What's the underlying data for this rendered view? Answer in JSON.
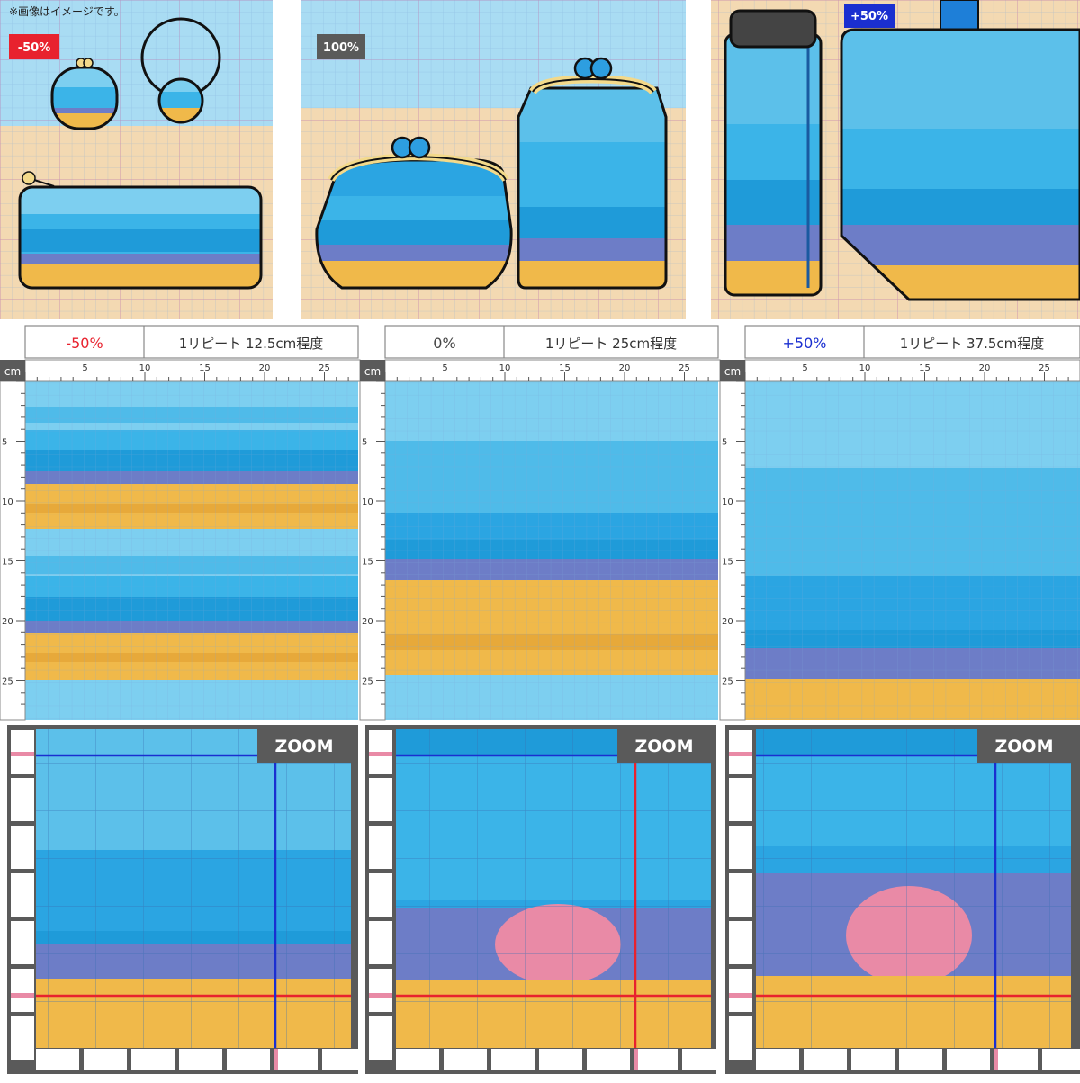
{
  "notice": "※画像はイメージです。",
  "palette": {
    "water_light": "#7dcff0",
    "water_mid": "#3bb4e8",
    "water_deep": "#1f9bd9",
    "sand": "#f0b94a",
    "sand_dark": "#e7a93a",
    "rock": "#6d7dc7",
    "coral_pink": "#e98aa6",
    "coral_teal": "#6fb3b3",
    "label_bg": "#5a5a5a",
    "minus_red": "#e8222e",
    "plus_blue": "#1a2fd0",
    "clasp_gold": "#f3d98a",
    "clasp_ball": "#2d9ee0"
  },
  "top_panels": [
    {
      "badge": "-50%",
      "badge_color": "#e8222e"
    },
    {
      "badge": "100%",
      "badge_color": "#5a5a5a"
    },
    {
      "badge": "+50%",
      "badge_color": "#1a2fd0"
    }
  ],
  "headers": [
    {
      "scale": "-50%",
      "scale_color": "#e8222e",
      "repeat": "1リピート 12.5cm程度"
    },
    {
      "scale": "0%",
      "scale_color": "#444444",
      "repeat": "1リピート 25cm程度"
    },
    {
      "scale": "+50%",
      "scale_color": "#1a2fd0",
      "repeat": "1リピート 37.5cm程度"
    }
  ],
  "ruler": {
    "unit": "cm",
    "top_ticks": [
      "5",
      "10",
      "15",
      "20",
      "25"
    ],
    "left_ticks": [
      "5",
      "10",
      "15",
      "20",
      "25"
    ]
  },
  "zoom_label": "ZOOM"
}
